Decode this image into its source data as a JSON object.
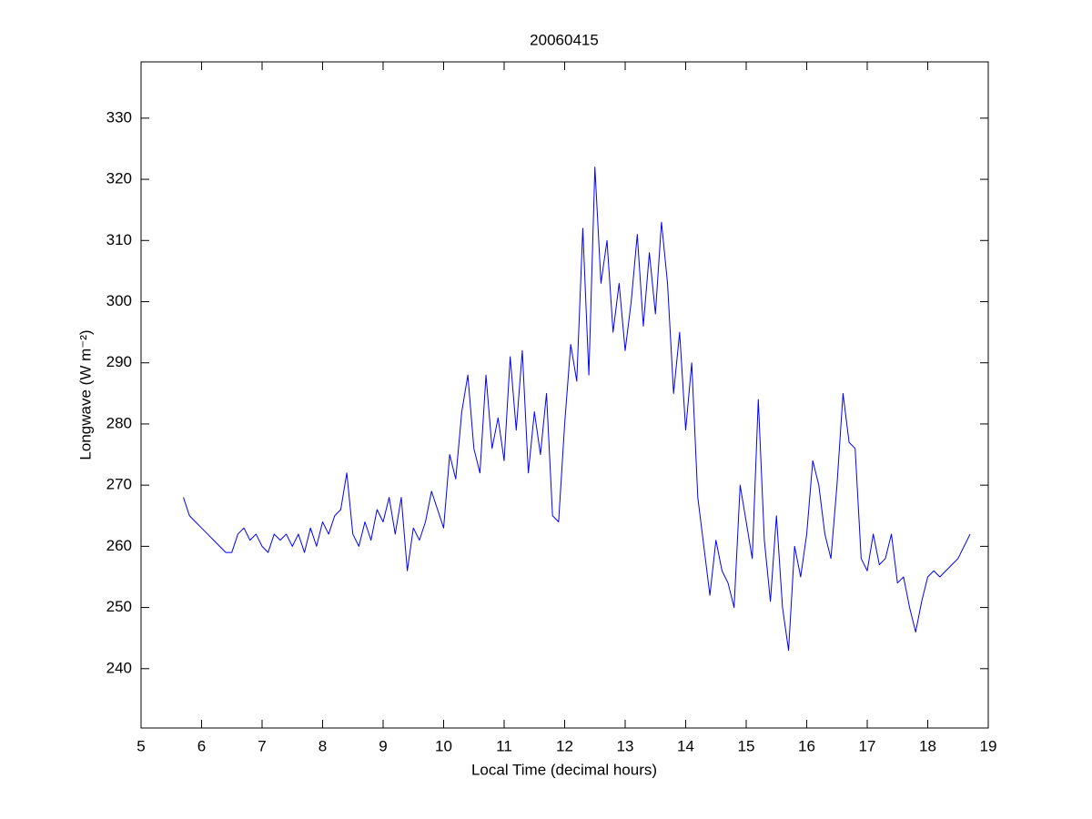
{
  "chart_data": {
    "type": "line",
    "title": "20060415",
    "x_label": "Local Time (decimal hours)",
    "y_label": "Longwave (W m⁻²)",
    "x": [
      5.7,
      5.8,
      5.9,
      6.0,
      6.1,
      6.2,
      6.3,
      6.4,
      6.5,
      6.6,
      6.7,
      6.8,
      6.9,
      7.0,
      7.1,
      7.2,
      7.3,
      7.4,
      7.5,
      7.6,
      7.7,
      7.8,
      7.9,
      8.0,
      8.1,
      8.2,
      8.3,
      8.4,
      8.5,
      8.6,
      8.7,
      8.8,
      8.9,
      9.0,
      9.1,
      9.2,
      9.3,
      9.4,
      9.5,
      9.6,
      9.7,
      9.8,
      9.9,
      10.0,
      10.1,
      10.2,
      10.3,
      10.4,
      10.5,
      10.6,
      10.7,
      10.8,
      10.9,
      11.0,
      11.1,
      11.2,
      11.3,
      11.4,
      11.5,
      11.6,
      11.7,
      11.8,
      11.9,
      12.0,
      12.1,
      12.2,
      12.3,
      12.4,
      12.5,
      12.6,
      12.7,
      12.8,
      12.9,
      13.0,
      13.1,
      13.2,
      13.3,
      13.4,
      13.5,
      13.6,
      13.7,
      13.8,
      13.9,
      14.0,
      14.1,
      14.2,
      14.3,
      14.4,
      14.5,
      14.6,
      14.7,
      14.8,
      14.9,
      15.0,
      15.1,
      15.2,
      15.3,
      15.4,
      15.5,
      15.6,
      15.7,
      15.8,
      15.9,
      16.0,
      16.1,
      16.2,
      16.3,
      16.4,
      16.5,
      16.6,
      16.7,
      16.8,
      16.9,
      17.0,
      17.1,
      17.2,
      17.3,
      17.4,
      17.5,
      17.6,
      17.7,
      17.8,
      17.9,
      18.0,
      18.1,
      18.2,
      18.3,
      18.4,
      18.5,
      18.6,
      18.7
    ],
    "series": [
      {
        "name": "Longwave",
        "color": "#0000ff",
        "values": [
          268,
          265,
          264,
          263,
          262,
          261,
          260,
          259,
          259,
          262,
          263,
          261,
          262,
          260,
          259,
          262,
          261,
          262,
          260,
          262,
          259,
          263,
          260,
          264,
          262,
          265,
          266,
          272,
          262,
          260,
          264,
          261,
          266,
          264,
          268,
          262,
          268,
          256,
          263,
          261,
          264,
          269,
          266,
          263,
          275,
          271,
          282,
          288,
          276,
          272,
          288,
          276,
          281,
          274,
          291,
          279,
          292,
          272,
          282,
          275,
          285,
          265,
          264,
          280,
          293,
          287,
          312,
          288,
          322,
          303,
          310,
          295,
          303,
          292,
          300,
          311,
          296,
          308,
          298,
          313,
          303,
          285,
          295,
          279,
          290,
          268,
          260,
          252,
          261,
          256,
          254,
          250,
          270,
          264,
          258,
          284,
          261,
          251,
          265,
          250,
          243,
          260,
          255,
          262,
          274,
          270,
          262,
          258,
          270,
          285,
          277,
          276,
          258,
          256,
          262,
          257,
          258,
          262,
          254,
          255,
          250,
          246,
          251,
          255,
          256,
          255,
          256,
          257,
          258,
          260,
          262
        ]
      }
    ],
    "xlim": [
      5,
      19
    ],
    "xticks": [
      5,
      6,
      7,
      8,
      9,
      10,
      11,
      12,
      13,
      14,
      15,
      16,
      17,
      18,
      19
    ],
    "ylim": [
      230.3,
      339.2
    ],
    "yticks": [
      240,
      250,
      260,
      270,
      280,
      290,
      300,
      310,
      320,
      330
    ],
    "grid": false
  }
}
